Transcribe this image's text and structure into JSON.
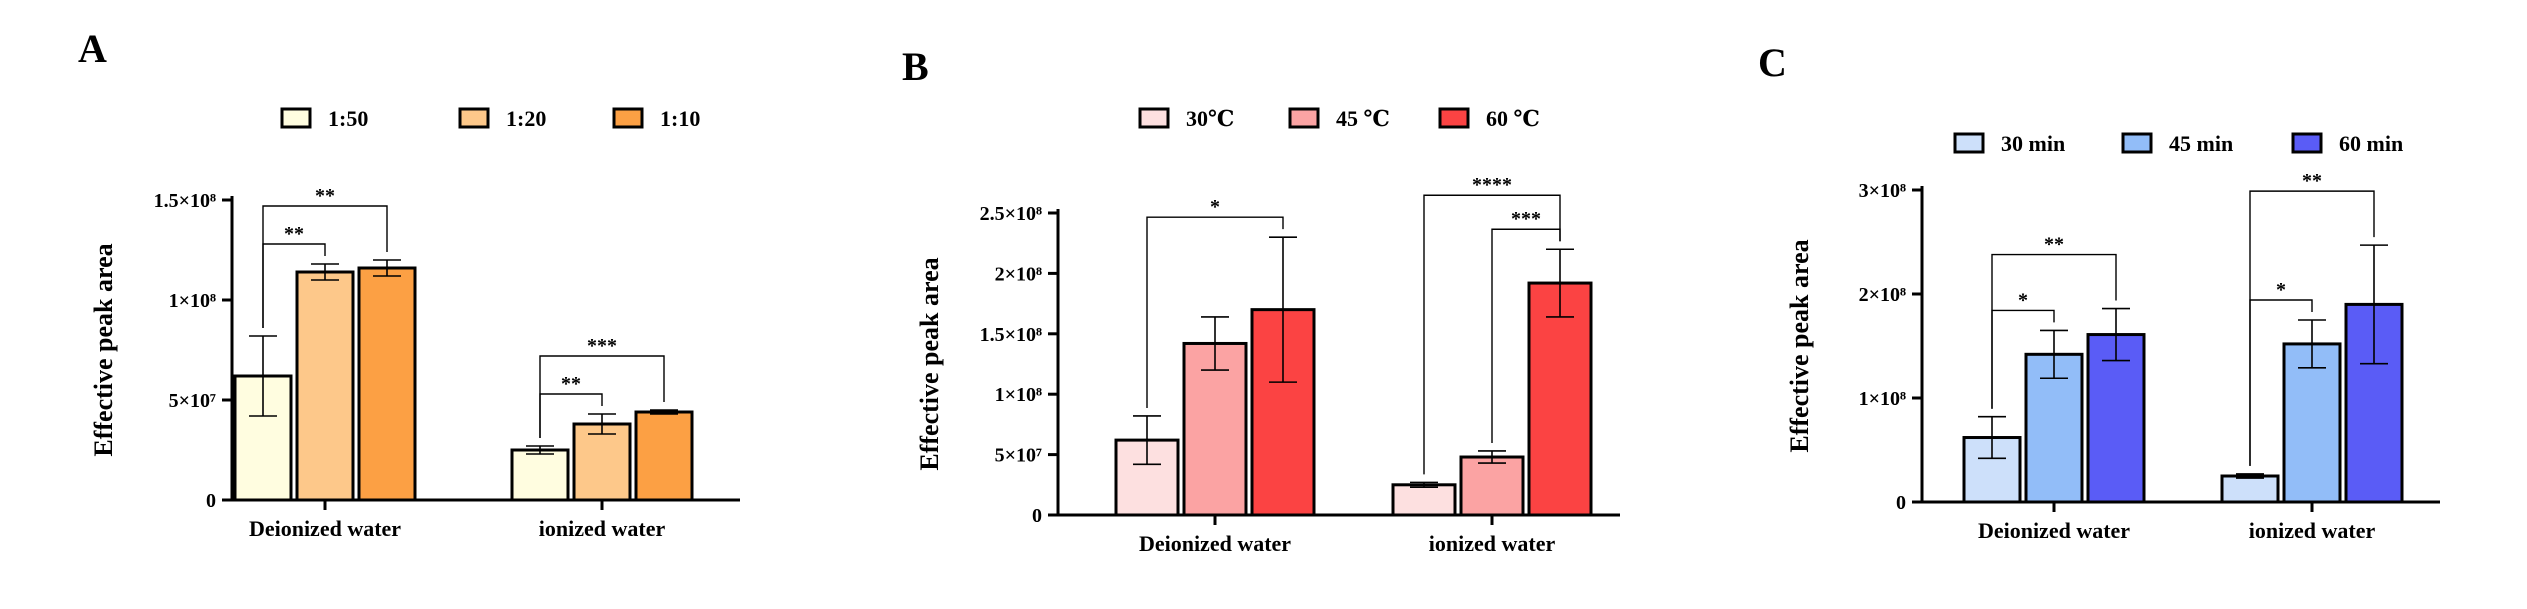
{
  "chart_data": [
    {
      "panel": "A",
      "type": "bar",
      "categories": [
        "Deionized water",
        "ionized water"
      ],
      "ylabel": "Effective peak area",
      "ylim": [
        0,
        150000000
      ],
      "yticks": [
        0,
        50000000,
        100000000,
        150000000
      ],
      "ytick_labels": [
        "0",
        "5×10⁷",
        "1×10⁸",
        "1.5×10⁸"
      ],
      "legend_position": "top",
      "series": [
        {
          "name": "1:50",
          "color": "#fffde0",
          "values": [
            62000000,
            25000000
          ],
          "errors": [
            20000000,
            2000000
          ]
        },
        {
          "name": "1:20",
          "color": "#fdc88a",
          "values": [
            114000000,
            38000000
          ],
          "errors": [
            4000000,
            5000000
          ]
        },
        {
          "name": "1:10",
          "color": "#fca044",
          "values": [
            116000000,
            44000000
          ],
          "errors": [
            4000000,
            1000000
          ]
        }
      ],
      "significance": [
        {
          "category": 0,
          "from": 0,
          "to": 1,
          "label": "**"
        },
        {
          "category": 0,
          "from": 0,
          "to": 2,
          "label": "**"
        },
        {
          "category": 1,
          "from": 0,
          "to": 1,
          "label": "**"
        },
        {
          "category": 1,
          "from": 0,
          "to": 2,
          "label": "***"
        }
      ]
    },
    {
      "panel": "B",
      "type": "bar",
      "categories": [
        "Deionized water",
        "ionized water"
      ],
      "ylabel": "Effective peak area",
      "ylim": [
        0,
        250000000
      ],
      "yticks": [
        0,
        50000000,
        100000000,
        150000000,
        200000000,
        250000000
      ],
      "ytick_labels": [
        "0",
        "5×10⁷",
        "1×10⁸",
        "1.5×10⁸",
        "2×10⁸",
        "2.5×10⁸"
      ],
      "legend_position": "top",
      "series": [
        {
          "name": "30℃",
          "color": "#fde0e0",
          "values": [
            62000000,
            25000000
          ],
          "errors": [
            20000000,
            2000000
          ]
        },
        {
          "name": "45 ℃",
          "color": "#fba3a3",
          "values": [
            142000000,
            48000000
          ],
          "errors": [
            22000000,
            5000000
          ]
        },
        {
          "name": "60 ℃",
          "color": "#fb4343",
          "values": [
            170000000,
            192000000
          ],
          "errors": [
            60000000,
            28000000
          ]
        }
      ],
      "significance": [
        {
          "category": 0,
          "from": 0,
          "to": 2,
          "label": "*"
        },
        {
          "category": 1,
          "from": 1,
          "to": 2,
          "label": "***"
        },
        {
          "category": 1,
          "from": 0,
          "to": 2,
          "label": "****"
        }
      ]
    },
    {
      "panel": "C",
      "type": "bar",
      "categories": [
        "Deionized water",
        "ionized water"
      ],
      "ylabel": "Effective peak area",
      "ylim": [
        0,
        300000000
      ],
      "yticks": [
        0,
        100000000,
        200000000,
        300000000
      ],
      "ytick_labels": [
        "0",
        "1×10⁸",
        "2×10⁸",
        "3×10⁸"
      ],
      "legend_position": "top",
      "series": [
        {
          "name": "30 min",
          "color": "#cde0fa",
          "values": [
            62000000,
            25000000
          ],
          "errors": [
            20000000,
            2000000
          ]
        },
        {
          "name": "45 min",
          "color": "#92bdf8",
          "values": [
            142000000,
            152000000
          ],
          "errors": [
            23000000,
            23000000
          ]
        },
        {
          "name": "60 min",
          "color": "#5a5cf6",
          "values": [
            161000000,
            190000000
          ],
          "errors": [
            25000000,
            57000000
          ]
        }
      ],
      "significance": [
        {
          "category": 0,
          "from": 0,
          "to": 1,
          "label": "*"
        },
        {
          "category": 0,
          "from": 0,
          "to": 2,
          "label": "**"
        },
        {
          "category": 1,
          "from": 0,
          "to": 1,
          "label": "*"
        },
        {
          "category": 1,
          "from": 0,
          "to": 2,
          "label": "**"
        }
      ]
    }
  ]
}
